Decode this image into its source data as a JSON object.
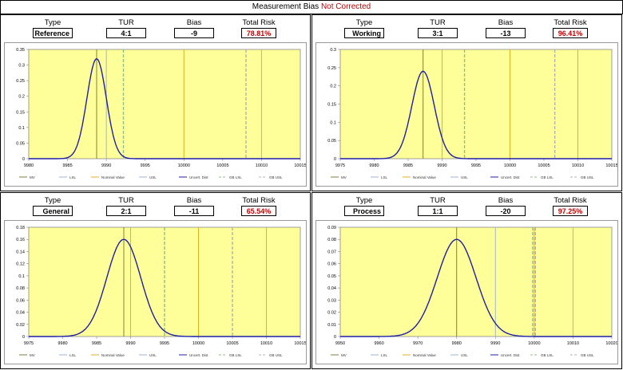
{
  "title": {
    "main": "Measurement Bias",
    "highlight": "Not Corrected"
  },
  "headers": {
    "type": "Type",
    "tur": "TUR",
    "bias": "Bias",
    "risk": "Total Risk"
  },
  "legend": [
    "MV",
    "LSL",
    "Nominal Value",
    "USL",
    "Uncert. Dist",
    "GB LSL",
    "GB USL"
  ],
  "colors": {
    "plot_bg": "#ffff99",
    "curve": "#1f1fa8",
    "mv": "#7f7f3f",
    "spec": "#9fb3d9",
    "nominal": "#e0b020",
    "guardband": "#8dbf8d",
    "risk": "#c00000",
    "grid": "#cccccc"
  },
  "chart_data": [
    {
      "type": "line",
      "panel": "Reference",
      "tur": "4:1",
      "bias": "-9",
      "total_risk": "78.81%",
      "xlim": [
        9980,
        10015
      ],
      "ylim": [
        0,
        0.35
      ],
      "xticks": [
        9980,
        9985,
        9990,
        9995,
        10000,
        10005,
        10010,
        10015
      ],
      "yticks": [
        0,
        0.05,
        0.1,
        0.15,
        0.2,
        0.25,
        0.3,
        0.35
      ],
      "ytick_labels": [
        "0",
        "0.05",
        "0.1",
        "0.15",
        "0.2",
        "0.25",
        "0.3",
        "0.35"
      ],
      "dist": {
        "mean": 9988.75,
        "peak": 0.32,
        "sd": 1.25
      },
      "lines": {
        "mv": 9988.75,
        "lsl": 9990,
        "gb_lsl": 9992.2,
        "nominal": 10000,
        "gb_usl": 10008,
        "usl": 10010
      }
    },
    {
      "type": "line",
      "panel": "Working",
      "tur": "3:1",
      "bias": "-13",
      "total_risk": "96.41%",
      "xlim": [
        9975,
        10015
      ],
      "ylim": [
        0,
        0.3
      ],
      "xticks": [
        9975,
        9980,
        9985,
        9990,
        9995,
        10000,
        10005,
        10010,
        10015
      ],
      "yticks": [
        0,
        0.05,
        0.1,
        0.15,
        0.2,
        0.25,
        0.3
      ],
      "ytick_labels": [
        "0",
        "0.05",
        "0.1",
        "0.15",
        "0.2",
        "0.25",
        "0.3"
      ],
      "dist": {
        "mean": 9987.2,
        "peak": 0.24,
        "sd": 1.65
      },
      "lines": {
        "mv": 9987.2,
        "lsl": 9990,
        "gb_lsl": 9993.3,
        "nominal": 10000,
        "gb_usl": 10006.6,
        "usl": 10010
      }
    },
    {
      "type": "line",
      "panel": "General",
      "tur": "2:1",
      "bias": "-11",
      "total_risk": "65.54%",
      "xlim": [
        9975,
        10015
      ],
      "ylim": [
        0,
        0.18
      ],
      "xticks": [
        9975,
        9980,
        9985,
        9990,
        9995,
        10000,
        10005,
        10010,
        10015
      ],
      "yticks": [
        0,
        0.02,
        0.04,
        0.06,
        0.08,
        0.1,
        0.12,
        0.14,
        0.16,
        0.18
      ],
      "ytick_labels": [
        "0",
        "0.02",
        "0.04",
        "0.06",
        "0.08",
        "0.1",
        "0.12",
        "0.14",
        "0.16",
        "0.18"
      ],
      "dist": {
        "mean": 9989,
        "peak": 0.16,
        "sd": 2.5
      },
      "lines": {
        "mv": 9989,
        "lsl": 9990,
        "gb_lsl": 9995,
        "nominal": 10000,
        "gb_usl": 10005,
        "usl": 10010
      }
    },
    {
      "type": "line",
      "panel": "Process",
      "tur": "1:1",
      "bias": "-20",
      "total_risk": "97.25%",
      "xlim": [
        9950,
        10020
      ],
      "ylim": [
        0,
        0.09
      ],
      "xticks": [
        9950,
        9960,
        9970,
        9980,
        9990,
        10000,
        10010,
        10020
      ],
      "yticks": [
        0,
        0.01,
        0.02,
        0.03,
        0.04,
        0.05,
        0.06,
        0.07,
        0.08,
        0.09
      ],
      "ytick_labels": [
        "0",
        "0.01",
        "0.02",
        "0.03",
        "0.04",
        "0.05",
        "0.06",
        "0.07",
        "0.08",
        "0.09"
      ],
      "dist": {
        "mean": 9980,
        "peak": 0.08,
        "sd": 5
      },
      "lines": {
        "mv": 9980,
        "lsl": 9990,
        "gb_lsl": 9999.6,
        "nominal": 10000,
        "gb_usl": 10000.3,
        "usl": 10010
      }
    }
  ]
}
